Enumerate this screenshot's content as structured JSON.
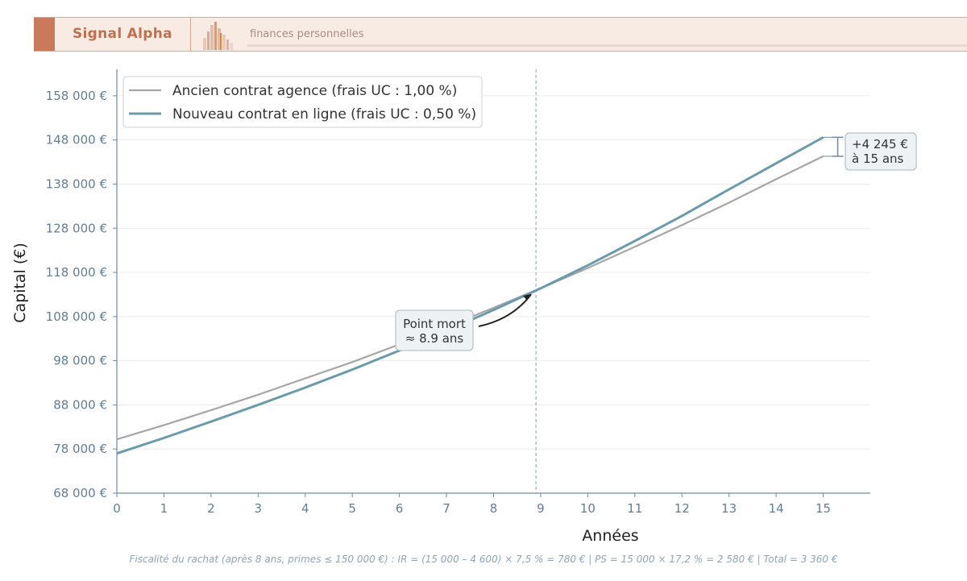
{
  "header": {
    "brand": "Signal Alpha",
    "tagline": "finances personnelles",
    "logo_icon": "bar-chart-logo-icon",
    "accent": "#c97a5a"
  },
  "chart_data": {
    "type": "line",
    "xlabel": "Années",
    "ylabel": "Capital (€)",
    "xlim": [
      0,
      16
    ],
    "ylim": [
      68000,
      164000
    ],
    "x_ticks": [
      0,
      1,
      2,
      3,
      4,
      5,
      6,
      7,
      8,
      9,
      10,
      11,
      12,
      13,
      14,
      15
    ],
    "x_tick_labels": [
      "0",
      "1",
      "2",
      "3",
      "4",
      "5",
      "6",
      "7",
      "8",
      "9",
      "10",
      "11",
      "12",
      "13",
      "14",
      "15"
    ],
    "y_ticks": [
      68000,
      78000,
      88000,
      98000,
      108000,
      118000,
      128000,
      138000,
      148000,
      158000
    ],
    "y_tick_labels": [
      "68 000 €",
      "78 000 €",
      "88 000 €",
      "98 000 €",
      "108 000 €",
      "118 000 €",
      "128 000 €",
      "138 000 €",
      "148 000 €",
      "158 000 €"
    ],
    "grid": true,
    "legend_position": "top-left",
    "x": [
      0,
      1,
      2,
      3,
      4,
      5,
      6,
      7,
      8,
      9,
      10,
      11,
      12,
      13,
      14,
      15
    ],
    "series": [
      {
        "name": "Ancien contrat agence (frais UC : 1,00 %)",
        "color": "#a6a6a6",
        "values": [
          80200,
          83400,
          86800,
          90300,
          94000,
          97700,
          101700,
          105700,
          110000,
          114400,
          119000,
          123800,
          128700,
          133800,
          139100,
          144300
        ]
      },
      {
        "name": "Nouveau contrat en ligne (frais UC : 0,50 %)",
        "color": "#6b9aaa",
        "values": [
          77000,
          80500,
          84200,
          88000,
          91900,
          96000,
          100300,
          104800,
          109500,
          114400,
          119600,
          125100,
          130800,
          136800,
          142700,
          148600
        ]
      }
    ],
    "annotations": [
      {
        "text_lines": [
          "Point mort",
          "≈ 8.9 ans"
        ],
        "x": 8.9,
        "y": 113800
      },
      {
        "text_lines": [
          "+4 245 €",
          "à 15 ans"
        ],
        "x": 15,
        "y_low": 144300,
        "y_high": 148600
      }
    ],
    "vline_x": 8.9,
    "footer": "Fiscalité du rachat (après 8 ans, primes ≤ 150 000 €) : IR = (15 000 – 4 600) × 7,5 % = 780 € | PS = 15 000 × 17,2 % = 2 580 € | Total = 3 360 €"
  }
}
